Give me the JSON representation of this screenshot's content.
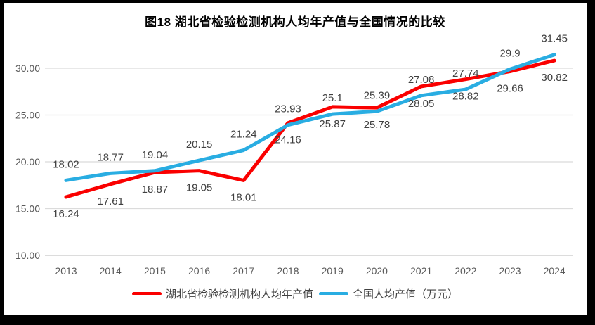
{
  "title": "图18 湖北省检验检测机构人均年产值与全国情况的比较",
  "colors": {
    "hubei_red": "#FA0000",
    "national_blue": "#29ADE2",
    "gridline": "#DBDBDB",
    "axis_line": "#C8C8C8",
    "axis_text": "#595959",
    "data_label_text": "#404040",
    "title_text": "#000000",
    "frame_border": "#000000",
    "background": "#FFFFFF"
  },
  "chart_data": {
    "type": "line",
    "title": "图18 湖北省检验检测机构人均年产值与全国情况的比较",
    "categories": [
      "2013",
      "2014",
      "2015",
      "2016",
      "2017",
      "2018",
      "2019",
      "2020",
      "2021",
      "2022",
      "2023",
      "2024"
    ],
    "series": [
      {
        "name": "湖北省检验检测机构人均年产值",
        "color": "#FA0000",
        "label_position": "below",
        "values": [
          16.24,
          17.61,
          18.87,
          19.05,
          18.01,
          24.16,
          25.87,
          25.78,
          28.05,
          28.82,
          29.66,
          30.82
        ]
      },
      {
        "name": "全国人均产值（万元）",
        "color": "#29ADE2",
        "label_position": "above",
        "values": [
          18.02,
          18.77,
          19.04,
          20.15,
          21.24,
          23.93,
          25.1,
          25.39,
          27.08,
          27.74,
          29.9,
          31.45
        ]
      }
    ],
    "y_ticks": [
      {
        "value": 10,
        "label": "10.00"
      },
      {
        "value": 15,
        "label": "15.00"
      },
      {
        "value": 20,
        "label": "20.00"
      },
      {
        "value": 25,
        "label": "25.00"
      },
      {
        "value": 30,
        "label": "30.00"
      }
    ],
    "ylim": [
      10,
      32.5
    ],
    "grid": true,
    "data_labels": true,
    "legend_position": "bottom"
  },
  "legend": {
    "items": [
      {
        "label": "湖北省检验检测机构人均年产值",
        "color": "#FA0000"
      },
      {
        "label": "全国人均产值（万元）",
        "color": "#29ADE2"
      }
    ]
  }
}
